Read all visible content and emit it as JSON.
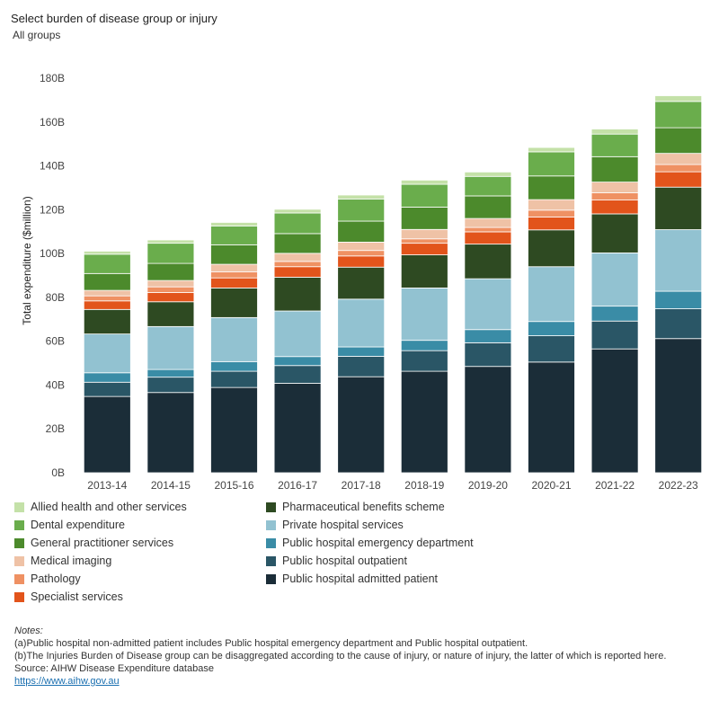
{
  "filter": {
    "label": "Select burden of disease group or injury",
    "value": "All groups"
  },
  "chart_data": {
    "type": "bar",
    "stacked": true,
    "ylabel": "Total expenditure ($million)",
    "xlabel": "",
    "ylim": [
      0,
      180000
    ],
    "yticks": [
      0,
      20000,
      40000,
      60000,
      80000,
      100000,
      120000,
      140000,
      160000,
      180000
    ],
    "ytick_labels": [
      "0B",
      "20B",
      "40B",
      "60B",
      "80B",
      "100B",
      "120B",
      "140B",
      "160B",
      "180B"
    ],
    "grid": false,
    "legend_position": "bottom",
    "categories": [
      "2013-14",
      "2014-15",
      "2015-16",
      "2016-17",
      "2017-18",
      "2018-19",
      "2019-20",
      "2020-21",
      "2021-22",
      "2022-23"
    ],
    "series": [
      {
        "name": "Public hospital admitted patient",
        "color": "#1b2d38",
        "values": [
          34800,
          36600,
          38900,
          40800,
          43800,
          46300,
          48500,
          50500,
          56500,
          61200
        ]
      },
      {
        "name": "Public hospital outpatient",
        "color": "#2a5666",
        "values": [
          6500,
          7000,
          7400,
          8100,
          9300,
          9400,
          10800,
          12000,
          12700,
          13600
        ]
      },
      {
        "name": "Public hospital emergency department",
        "color": "#3a8ca6",
        "values": [
          4300,
          3500,
          4400,
          4100,
          4300,
          4700,
          6000,
          6500,
          6800,
          8000
        ]
      },
      {
        "name": "Private hospital services",
        "color": "#92c2d1",
        "values": [
          17700,
          19600,
          20100,
          20800,
          21800,
          23900,
          23200,
          25000,
          24300,
          28100
        ]
      },
      {
        "name": "Pharmaceutical benefits scheme",
        "color": "#2e4a22",
        "values": [
          11200,
          11300,
          13500,
          15400,
          14600,
          15100,
          15800,
          16800,
          17800,
          19400
        ]
      },
      {
        "name": "Specialist services",
        "color": "#e2541b",
        "values": [
          3900,
          4200,
          4600,
          4800,
          5100,
          5300,
          5600,
          5900,
          6300,
          7000
        ]
      },
      {
        "name": "Pathology",
        "color": "#ef9163",
        "values": [
          2300,
          2600,
          2700,
          2400,
          2500,
          2000,
          2000,
          3100,
          3300,
          3300
        ]
      },
      {
        "name": "Medical imaging",
        "color": "#efc2a6",
        "values": [
          2500,
          2900,
          3500,
          3700,
          3800,
          4300,
          4100,
          4800,
          4900,
          5100
        ]
      },
      {
        "name": "General practitioner services",
        "color": "#4c8a2c",
        "values": [
          7700,
          7800,
          8900,
          9000,
          9600,
          10200,
          10300,
          10800,
          11600,
          11700
        ]
      },
      {
        "name": "Dental expenditure",
        "color": "#6aad4c",
        "values": [
          8800,
          9200,
          8600,
          9400,
          10100,
          10400,
          8900,
          11000,
          10300,
          12000
        ]
      },
      {
        "name": "Allied health and other services",
        "color": "#c4e1a8",
        "values": [
          1400,
          1500,
          1600,
          1700,
          1800,
          1900,
          2000,
          2000,
          2300,
          2600
        ]
      }
    ]
  },
  "legend": [
    {
      "label": "Allied health and other services",
      "color": "#c4e1a8"
    },
    {
      "label": "Dental expenditure",
      "color": "#6aad4c"
    },
    {
      "label": "General practitioner services",
      "color": "#4c8a2c"
    },
    {
      "label": "Medical imaging",
      "color": "#efc2a6"
    },
    {
      "label": "Pathology",
      "color": "#ef9163"
    },
    {
      "label": "Specialist services",
      "color": "#e2541b"
    },
    {
      "label": "Pharmaceutical benefits scheme",
      "color": "#2e4a22"
    },
    {
      "label": "Private hospital services",
      "color": "#92c2d1"
    },
    {
      "label": "Public hospital emergency department",
      "color": "#3a8ca6"
    },
    {
      "label": "Public hospital outpatient",
      "color": "#2a5666"
    },
    {
      "label": "Public hospital admitted patient",
      "color": "#1b2d38"
    }
  ],
  "notes": {
    "heading": "Notes:",
    "a": "(a)Public hospital non-admitted patient includes Public hospital emergency department and Public hospital outpatient.",
    "b": "(b)The Injuries Burden of Disease group can be disaggregated according to the cause of injury, or nature of injury, the latter of which is reported here.",
    "source": "Source: AIHW Disease Expenditure database",
    "link": "https://www.aihw.gov.au"
  }
}
